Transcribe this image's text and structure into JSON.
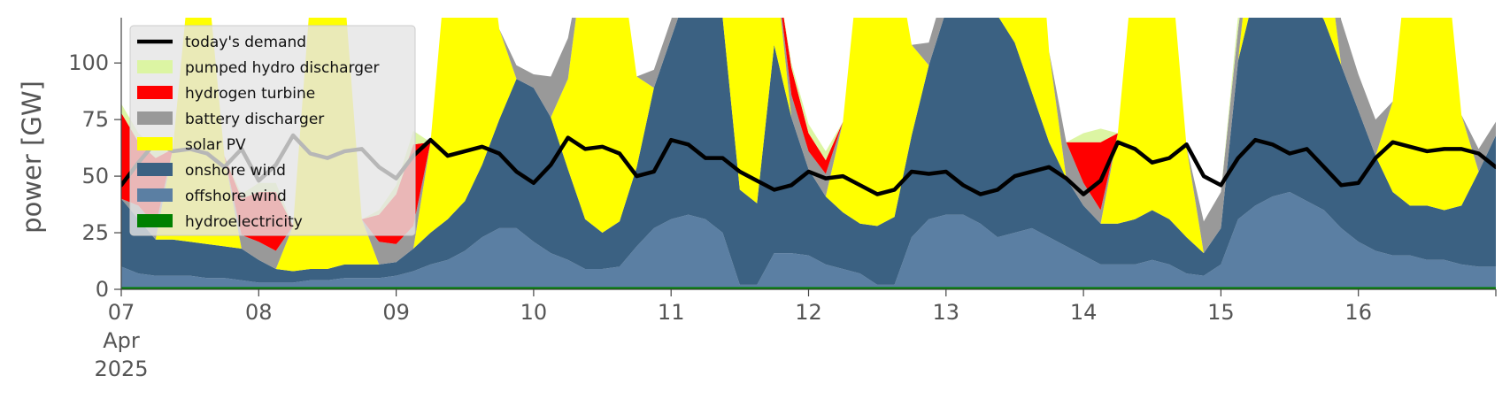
{
  "chart_data": {
    "type": "area",
    "ylabel": "power [GW]",
    "ylim": [
      0,
      120
    ],
    "xlim": [
      "2025-04-07T00:00",
      "2025-04-17T00:00"
    ],
    "y_ticks": [
      {
        "value": 0,
        "label": "0"
      },
      {
        "value": 25,
        "label": "25"
      },
      {
        "value": 50,
        "label": "50"
      },
      {
        "value": 75,
        "label": "75"
      },
      {
        "value": 100,
        "label": "100"
      }
    ],
    "x_ticks": [
      {
        "value": "2025-04-07",
        "label": "07",
        "sublabels": [
          "Apr",
          "2025"
        ]
      },
      {
        "value": "2025-04-08",
        "label": "08"
      },
      {
        "value": "2025-04-09",
        "label": "09"
      },
      {
        "value": "2025-04-10",
        "label": "10"
      },
      {
        "value": "2025-04-11",
        "label": "11"
      },
      {
        "value": "2025-04-12",
        "label": "12"
      },
      {
        "value": "2025-04-13",
        "label": "13"
      },
      {
        "value": "2025-04-14",
        "label": "14"
      },
      {
        "value": "2025-04-15",
        "label": "15"
      },
      {
        "value": "2025-04-16",
        "label": "16"
      }
    ],
    "legend_position": "top-left",
    "legend": [
      "today's demand",
      "pumped hydro discharger",
      "hydrogen turbine",
      "battery discharger",
      "solar PV",
      "onshore wind",
      "offshore wind",
      "hydroelectricity"
    ],
    "x": [
      "2025-04-07T00:00",
      "2025-04-07T03:00",
      "2025-04-07T06:00",
      "2025-04-07T09:00",
      "2025-04-07T12:00",
      "2025-04-07T15:00",
      "2025-04-07T18:00",
      "2025-04-07T21:00",
      "2025-04-08T00:00",
      "2025-04-08T03:00",
      "2025-04-08T06:00",
      "2025-04-08T09:00",
      "2025-04-08T12:00",
      "2025-04-08T15:00",
      "2025-04-08T18:00",
      "2025-04-08T21:00",
      "2025-04-09T00:00",
      "2025-04-09T03:00",
      "2025-04-09T06:00",
      "2025-04-09T09:00",
      "2025-04-09T12:00",
      "2025-04-09T15:00",
      "2025-04-09T18:00",
      "2025-04-09T21:00",
      "2025-04-10T00:00",
      "2025-04-10T03:00",
      "2025-04-10T06:00",
      "2025-04-10T09:00",
      "2025-04-10T12:00",
      "2025-04-10T15:00",
      "2025-04-10T18:00",
      "2025-04-10T21:00",
      "2025-04-11T00:00",
      "2025-04-11T03:00",
      "2025-04-11T06:00",
      "2025-04-11T09:00",
      "2025-04-11T12:00",
      "2025-04-11T15:00",
      "2025-04-11T18:00",
      "2025-04-11T21:00",
      "2025-04-12T00:00",
      "2025-04-12T03:00",
      "2025-04-12T06:00",
      "2025-04-12T09:00",
      "2025-04-12T12:00",
      "2025-04-12T15:00",
      "2025-04-12T18:00",
      "2025-04-12T21:00",
      "2025-04-13T00:00",
      "2025-04-13T03:00",
      "2025-04-13T06:00",
      "2025-04-13T09:00",
      "2025-04-13T12:00",
      "2025-04-13T15:00",
      "2025-04-13T18:00",
      "2025-04-13T21:00",
      "2025-04-14T00:00",
      "2025-04-14T03:00",
      "2025-04-14T06:00",
      "2025-04-14T09:00",
      "2025-04-14T12:00",
      "2025-04-14T15:00",
      "2025-04-14T18:00",
      "2025-04-14T21:00",
      "2025-04-15T00:00",
      "2025-04-15T03:00",
      "2025-04-15T06:00",
      "2025-04-15T09:00",
      "2025-04-15T12:00",
      "2025-04-15T15:00",
      "2025-04-15T18:00",
      "2025-04-15T21:00",
      "2025-04-16T00:00",
      "2025-04-16T03:00",
      "2025-04-16T06:00",
      "2025-04-16T09:00",
      "2025-04-16T12:00",
      "2025-04-16T15:00",
      "2025-04-16T18:00",
      "2025-04-16T21:00",
      "2025-04-17T00:00"
    ],
    "series": [
      {
        "name": "hydroelectricity",
        "color": "#008000",
        "values": [
          1,
          1,
          1,
          1,
          1,
          1,
          1,
          1,
          1,
          1,
          1,
          1,
          1,
          1,
          1,
          1,
          1,
          1,
          1,
          1,
          1,
          1,
          1,
          1,
          1,
          1,
          1,
          1,
          1,
          1,
          1,
          1,
          1,
          1,
          1,
          1,
          1,
          1,
          1,
          1,
          1,
          1,
          1,
          1,
          1,
          1,
          1,
          1,
          1,
          1,
          1,
          1,
          1,
          1,
          1,
          1,
          1,
          1,
          1,
          1,
          1,
          1,
          1,
          1,
          1,
          1,
          1,
          1,
          1,
          1,
          1,
          1,
          1,
          1,
          1,
          1,
          1,
          1,
          1,
          1,
          1
        ]
      },
      {
        "name": "offshore wind",
        "color": "#5b7fa3",
        "values": [
          9,
          6,
          5,
          5,
          5,
          4,
          4,
          3,
          2,
          2,
          2,
          3,
          3,
          4,
          4,
          4,
          5,
          7,
          10,
          12,
          16,
          22,
          26,
          26,
          20,
          15,
          12,
          8,
          8,
          9,
          18,
          26,
          30,
          32,
          30,
          24,
          1,
          1,
          15,
          15,
          14,
          10,
          8,
          6,
          1,
          1,
          22,
          30,
          32,
          32,
          28,
          22,
          24,
          26,
          22,
          18,
          14,
          10,
          10,
          10,
          12,
          10,
          6,
          5,
          10,
          30,
          36,
          40,
          42,
          38,
          34,
          26,
          20,
          16,
          14,
          14,
          12,
          12,
          10,
          9,
          9
        ]
      },
      {
        "name": "onshore wind",
        "color": "#3b6182",
        "values": [
          30,
          24,
          16,
          16,
          15,
          15,
          14,
          14,
          10,
          6,
          5,
          5,
          5,
          6,
          6,
          6,
          6,
          10,
          14,
          18,
          22,
          32,
          48,
          66,
          68,
          60,
          40,
          22,
          16,
          20,
          35,
          62,
          80,
          100,
          105,
          95,
          42,
          36,
          92,
          60,
          38,
          30,
          25,
          22,
          26,
          30,
          45,
          68,
          90,
          98,
          105,
          98,
          84,
          60,
          42,
          30,
          22,
          18,
          18,
          20,
          22,
          20,
          16,
          10,
          16,
          70,
          95,
          102,
          96,
          92,
          84,
          72,
          58,
          42,
          28,
          22,
          24,
          22,
          26,
          42,
          58
        ]
      },
      {
        "name": "solar PV",
        "color": "#ffff00",
        "values": [
          0,
          0,
          0,
          40,
          120,
          120,
          40,
          0,
          0,
          0,
          20,
          120,
          120,
          120,
          20,
          0,
          0,
          0,
          40,
          120,
          120,
          120,
          40,
          0,
          0,
          0,
          40,
          120,
          120,
          120,
          40,
          0,
          0,
          0,
          40,
          120,
          120,
          120,
          40,
          0,
          0,
          0,
          40,
          120,
          120,
          120,
          40,
          0,
          0,
          0,
          40,
          120,
          120,
          120,
          40,
          0,
          0,
          0,
          40,
          120,
          120,
          120,
          40,
          0,
          0,
          0,
          40,
          120,
          120,
          120,
          40,
          0,
          0,
          0,
          40,
          120,
          120,
          120,
          40,
          0,
          0
        ]
      },
      {
        "name": "battery discharger",
        "color": "#999999",
        "values": [
          0,
          6,
          6,
          0,
          0,
          0,
          0,
          6,
          8,
          8,
          0,
          0,
          0,
          0,
          0,
          10,
          8,
          10,
          0,
          0,
          0,
          0,
          0,
          6,
          6,
          18,
          18,
          0,
          0,
          0,
          0,
          8,
          8,
          12,
          12,
          0,
          0,
          0,
          0,
          10,
          8,
          10,
          0,
          0,
          0,
          0,
          0,
          10,
          12,
          12,
          12,
          0,
          0,
          0,
          0,
          16,
          10,
          6,
          0,
          0,
          0,
          0,
          0,
          14,
          16,
          14,
          0,
          0,
          0,
          0,
          0,
          20,
          16,
          16,
          0,
          0,
          0,
          0,
          0,
          10,
          6
        ]
      },
      {
        "name": "hydrogen turbine",
        "color": "#ff0000",
        "values": [
          38,
          28,
          30,
          0,
          0,
          0,
          0,
          16,
          22,
          26,
          0,
          0,
          0,
          0,
          0,
          12,
          22,
          36,
          0,
          0,
          0,
          0,
          0,
          0,
          0,
          0,
          0,
          0,
          0,
          0,
          0,
          0,
          0,
          0,
          0,
          0,
          0,
          0,
          0,
          12,
          8,
          6,
          0,
          0,
          0,
          0,
          0,
          0,
          0,
          0,
          0,
          0,
          0,
          0,
          0,
          0,
          18,
          30,
          0,
          0,
          0,
          0,
          0,
          0,
          0,
          0,
          0,
          0,
          0,
          0,
          0,
          0,
          0,
          0,
          0,
          0,
          0,
          0,
          0,
          0,
          0
        ]
      },
      {
        "name": "pumped hydro discharger",
        "color": "#dcf5a3",
        "values": [
          4,
          4,
          4,
          0,
          0,
          0,
          0,
          2,
          4,
          4,
          0,
          0,
          0,
          0,
          0,
          2,
          4,
          6,
          0,
          0,
          0,
          0,
          0,
          0,
          0,
          0,
          0,
          0,
          0,
          0,
          0,
          0,
          0,
          0,
          0,
          0,
          0,
          0,
          0,
          2,
          4,
          4,
          0,
          0,
          0,
          0,
          0,
          0,
          0,
          0,
          0,
          0,
          0,
          0,
          0,
          0,
          4,
          6,
          0,
          0,
          0,
          0,
          0,
          0,
          0,
          6,
          6,
          0,
          0,
          0,
          0,
          0,
          0,
          0,
          0,
          0,
          0,
          0,
          0,
          0,
          0
        ]
      },
      {
        "name": "today's demand",
        "color": "#000000",
        "kind": "line",
        "values": [
          46,
          56,
          65,
          61,
          62,
          60,
          54,
          62,
          48,
          55,
          68,
          60,
          58,
          61,
          62,
          54,
          49,
          59,
          66,
          59,
          61,
          63,
          60,
          52,
          47,
          55,
          67,
          62,
          63,
          60,
          50,
          52,
          66,
          64,
          58,
          58,
          52,
          48,
          44,
          46,
          52,
          49,
          50,
          46,
          42,
          44,
          52,
          51,
          52,
          46,
          42,
          44,
          50,
          52,
          54,
          49,
          42,
          48,
          65,
          62,
          56,
          58,
          64,
          50,
          46,
          58,
          66,
          64,
          60,
          62,
          54,
          46,
          47,
          58,
          65,
          63,
          61,
          62,
          62,
          60,
          54
        ]
      }
    ]
  }
}
